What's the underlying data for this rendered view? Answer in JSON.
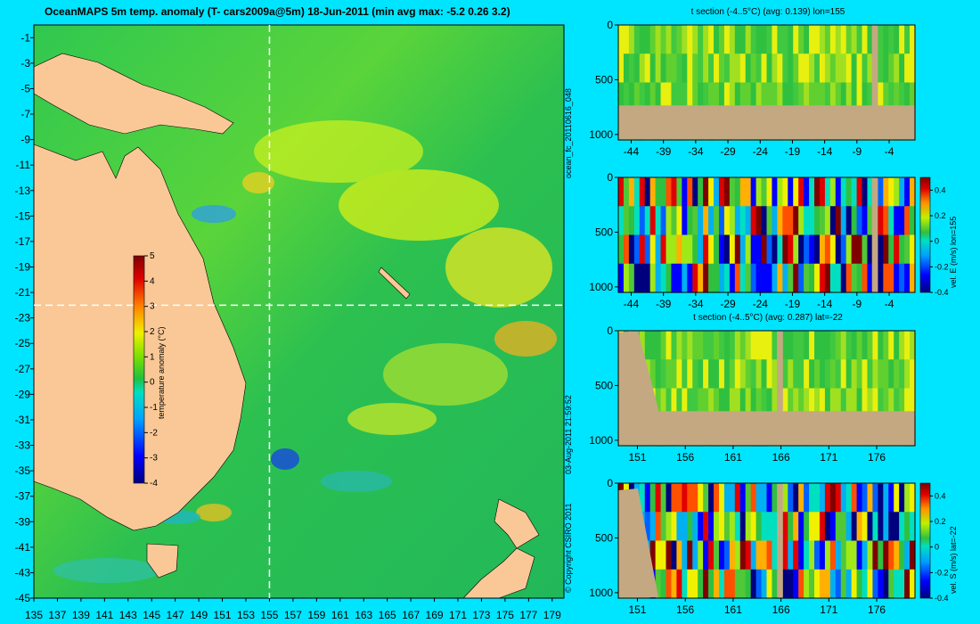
{
  "map_title": "OceanMAPS 5m temp. anomaly (T- cars2009a@5m) 18-Jun-2011 (min avg max: -5.2 0.26 3.2)",
  "side_labels": {
    "forecast_id": "ocean_fc_20110616_048",
    "timestamp": "03-Aug-2011 21:59:52",
    "copyright": "© Copyright CSIRO 2011"
  },
  "colors": {
    "page_background": "#00e5ff",
    "land": "#f9c896",
    "section_land": "#c4a882",
    "ocean_mid": "#2ec84a",
    "crosshair": "#ffffff"
  },
  "map": {
    "x_ticks": [
      "135",
      "137",
      "139",
      "141",
      "143",
      "145",
      "147",
      "149",
      "151",
      "153",
      "155",
      "157",
      "159",
      "161",
      "163",
      "165",
      "167",
      "169",
      "171",
      "173",
      "175",
      "177",
      "179"
    ],
    "y_ticks": [
      "-1",
      "-3",
      "-5",
      "-7",
      "-9",
      "-11",
      "-13",
      "-15",
      "-17",
      "-19",
      "-21",
      "-23",
      "-25",
      "-27",
      "-29",
      "-31",
      "-33",
      "-35",
      "-37",
      "-39",
      "-41",
      "-43",
      "-45"
    ],
    "crosshair_lon": 155,
    "crosshair_lat": -22,
    "colorbar_label": "temperature anomaly (°C)",
    "colorbar_ticks": [
      "5",
      "4",
      "3",
      "2",
      "1",
      "0",
      "-1",
      "-2",
      "-3",
      "-4"
    ]
  },
  "panels": [
    {
      "id": "t-lon",
      "title": "t section (-4..5°C) (avg: 0.139) lon=155",
      "x_ticks": [
        "-44",
        "-39",
        "-34",
        "-29",
        "-24",
        "-19",
        "-14",
        "-9",
        "-4"
      ],
      "y_ticks": [
        "0",
        "500",
        "1000"
      ],
      "colorbar": null
    },
    {
      "id": "u-lon",
      "title": "",
      "x_ticks": [
        "-44",
        "-39",
        "-34",
        "-29",
        "-24",
        "-19",
        "-14",
        "-9",
        "-4"
      ],
      "y_ticks": [
        "0",
        "500",
        "1000"
      ],
      "colorbar": {
        "label": "vel. E (m/s) lon=155",
        "ticks": [
          "0.4",
          "0.2",
          "0",
          "-0.2",
          "-0.4"
        ]
      }
    },
    {
      "id": "t-lat",
      "title": "t section (-4..5°C) (avg: 0.287) lat=-22",
      "x_ticks": [
        "151",
        "156",
        "161",
        "166",
        "171",
        "176"
      ],
      "y_ticks": [
        "0",
        "500",
        "1000"
      ],
      "colorbar": null
    },
    {
      "id": "v-lat",
      "title": "",
      "x_ticks": [
        "151",
        "156",
        "161",
        "166",
        "171",
        "176"
      ],
      "y_ticks": [
        "0",
        "500",
        "1000"
      ],
      "colorbar": {
        "label": "vel. S (m/s) lat=-22",
        "ticks": [
          "0.4",
          "0.2",
          "0",
          "-0.2",
          "-0.4"
        ]
      }
    }
  ],
  "chart_data": [
    {
      "type": "heatmap",
      "title": "OceanMAPS 5m temp. anomaly (T- cars2009a@5m) 18-Jun-2011 (min avg max: -5.2 0.26 3.2)",
      "x_range": [
        135,
        180
      ],
      "y_range": [
        -45,
        0
      ],
      "value_range": [
        -4,
        5
      ],
      "colorbar_label": "temperature anomaly (°C)",
      "summary": {
        "min": -5.2,
        "avg": 0.26,
        "max": 3.2
      },
      "section_lines": {
        "lon": 155,
        "lat": -22
      }
    },
    {
      "type": "heatmap",
      "title": "t section (-4..5°C) (avg: 0.139) lon=155",
      "x_range": [
        -46,
        0
      ],
      "y_range": [
        1050,
        0
      ],
      "value_range": [
        -4,
        5
      ],
      "avg": 0.139
    },
    {
      "type": "heatmap",
      "title": "",
      "x_range": [
        -46,
        0
      ],
      "y_range": [
        1050,
        0
      ],
      "value_range": [
        -0.4,
        0.5
      ],
      "colorbar_label": "vel. E (m/s) lon=155"
    },
    {
      "type": "heatmap",
      "title": "t section (-4..5°C) (avg: 0.287) lat=-22",
      "x_range": [
        149,
        180
      ],
      "y_range": [
        1050,
        0
      ],
      "value_range": [
        -4,
        5
      ],
      "avg": 0.287
    },
    {
      "type": "heatmap",
      "title": "",
      "x_range": [
        149,
        180
      ],
      "y_range": [
        1050,
        0
      ],
      "value_range": [
        -0.4,
        0.5
      ],
      "colorbar_label": "vel. S (m/s) lat=-22"
    }
  ]
}
